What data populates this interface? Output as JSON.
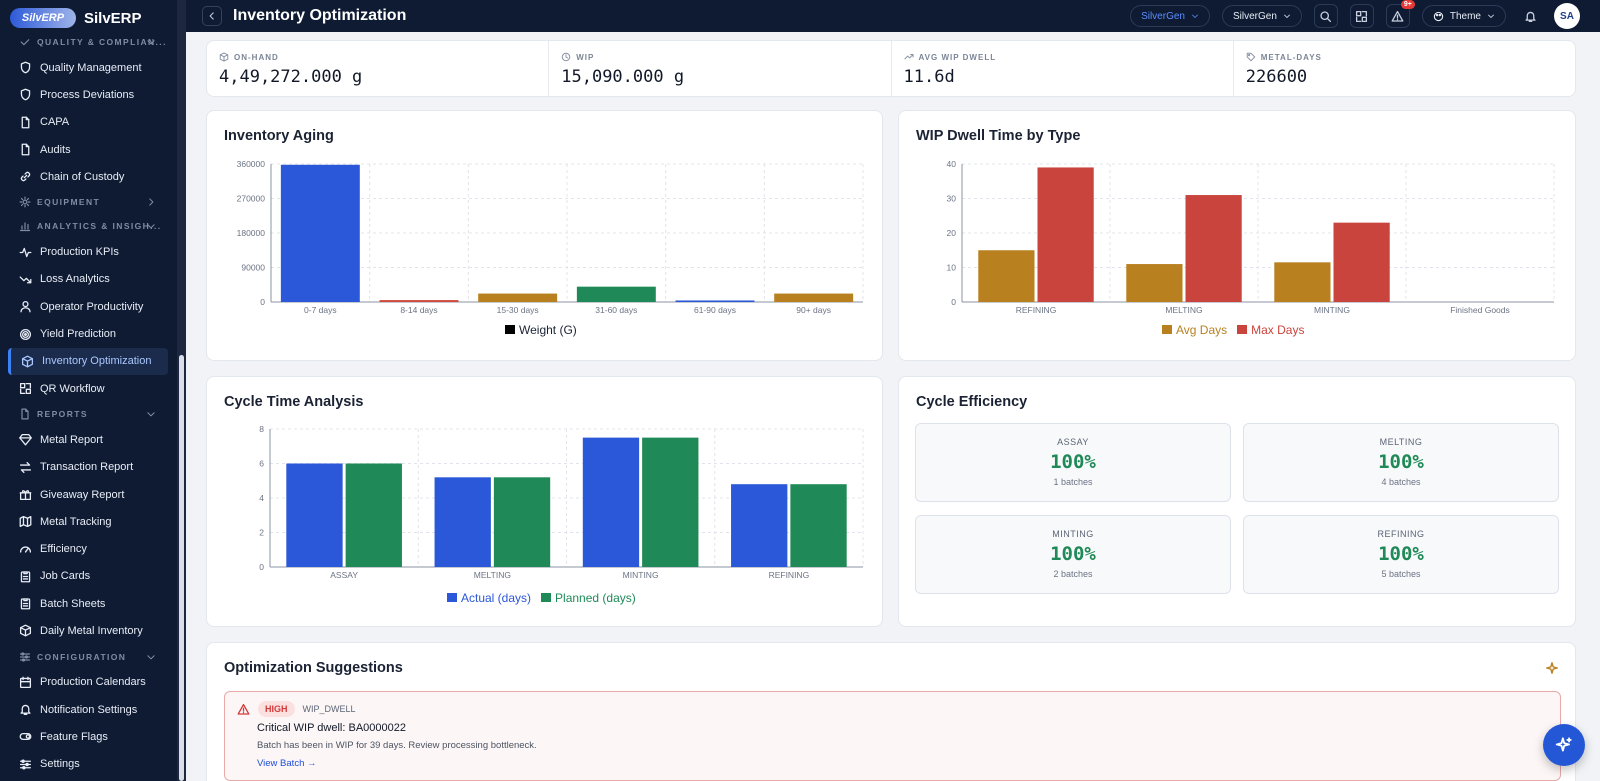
{
  "brand": {
    "logo": "SilvERP",
    "name": "SilvERP"
  },
  "topbar": {
    "title": "Inventory Optimization",
    "org_pill": "SilverGen",
    "org_select": "SilverGen",
    "notif_badge": "9+",
    "theme": "Theme",
    "avatar": "SA"
  },
  "sidebar": {
    "sections": [
      {
        "label": "QUALITY & COMPLIAN...",
        "items": [
          {
            "label": "Quality Management",
            "icon": "shield-icon"
          },
          {
            "label": "Process Deviations",
            "icon": "shield-icon"
          },
          {
            "label": "CAPA",
            "icon": "document-icon"
          },
          {
            "label": "Audits",
            "icon": "document-icon"
          },
          {
            "label": "Chain of Custody",
            "icon": "link-icon"
          }
        ]
      },
      {
        "label": "EQUIPMENT",
        "items": []
      },
      {
        "label": "ANALYTICS & INSIGH...",
        "items": [
          {
            "label": "Production KPIs",
            "icon": "activity-icon"
          },
          {
            "label": "Loss Analytics",
            "icon": "trend-down-icon"
          },
          {
            "label": "Operator Productivity",
            "icon": "user-icon"
          },
          {
            "label": "Yield Prediction",
            "icon": "target-icon"
          },
          {
            "label": "Inventory Optimization",
            "icon": "box-icon"
          },
          {
            "label": "QR Workflow",
            "icon": "qr-icon"
          }
        ]
      },
      {
        "label": "REPORTS",
        "items": [
          {
            "label": "Metal Report",
            "icon": "gem-icon"
          },
          {
            "label": "Transaction Report",
            "icon": "swap-icon"
          },
          {
            "label": "Giveaway Report",
            "icon": "gift-icon"
          },
          {
            "label": "Metal Tracking",
            "icon": "map-icon"
          },
          {
            "label": "Efficiency",
            "icon": "gauge-icon"
          },
          {
            "label": "Job Cards",
            "icon": "clipboard-icon"
          },
          {
            "label": "Batch Sheets",
            "icon": "clipboard-icon"
          },
          {
            "label": "Daily Metal Inventory",
            "icon": "box-icon"
          }
        ]
      },
      {
        "label": "CONFIGURATION",
        "items": [
          {
            "label": "Production Calendars",
            "icon": "calendar-icon"
          },
          {
            "label": "Notification Settings",
            "icon": "bell-icon"
          },
          {
            "label": "Feature Flags",
            "icon": "toggle-icon"
          },
          {
            "label": "Settings",
            "icon": "sliders-icon"
          }
        ]
      }
    ]
  },
  "kpis": [
    {
      "label": "ON-HAND",
      "value": "4,49,272.000 g",
      "icon": "box-icon"
    },
    {
      "label": "WIP",
      "value": "15,090.000 g",
      "icon": "clock-icon"
    },
    {
      "label": "AVG WIP DWELL",
      "value": "11.6d",
      "icon": "trend-up-icon"
    },
    {
      "label": "METAL-DAYS",
      "value": "226600",
      "icon": "tag-icon"
    }
  ],
  "aging": {
    "title": "Inventory Aging",
    "chart_data": {
      "type": "bar",
      "categories": [
        "0-7 days",
        "8-14 days",
        "15-30 days",
        "31-60 days",
        "61-90 days",
        "90+ days"
      ],
      "series": [
        {
          "name": "Weight (G)",
          "values": [
            358000,
            5000,
            22000,
            40000,
            4000,
            22000
          ]
        }
      ],
      "bar_colors": [
        "#2b57d9",
        "#d14a3c",
        "#b8801f",
        "#1f8a57",
        "#2b57d9",
        "#b8801f"
      ],
      "ylim": [
        0,
        360000
      ],
      "yticks": [
        0,
        90000,
        180000,
        270000,
        360000
      ]
    }
  },
  "dwell": {
    "title": "WIP Dwell Time by Type",
    "chart_data": {
      "type": "bar",
      "categories": [
        "REFINING",
        "MELTING",
        "MINTING",
        "Finished Goods"
      ],
      "series": [
        {
          "name": "Avg Days",
          "values": [
            15,
            11,
            11.5,
            0
          ],
          "color": "#b8801f"
        },
        {
          "name": "Max Days",
          "values": [
            39,
            31,
            23,
            0
          ],
          "color": "#c9443c"
        }
      ],
      "ylim": [
        0,
        40
      ],
      "yticks": [
        0,
        10,
        20,
        30,
        40
      ]
    }
  },
  "cycle": {
    "title": "Cycle Time Analysis",
    "chart_data": {
      "type": "bar",
      "categories": [
        "ASSAY",
        "MELTING",
        "MINTING",
        "REFINING"
      ],
      "series": [
        {
          "name": "Actual (days)",
          "values": [
            6,
            5.2,
            7.5,
            4.8
          ],
          "color": "#2b57d9"
        },
        {
          "name": "Planned (days)",
          "values": [
            6,
            5.2,
            7.5,
            4.8
          ],
          "color": "#1f8a57"
        }
      ],
      "ylim": [
        0,
        8
      ],
      "yticks": [
        0,
        2,
        4,
        6,
        8
      ]
    }
  },
  "efficiency": {
    "title": "Cycle Efficiency",
    "tiles": [
      {
        "label": "ASSAY",
        "pct": "100%",
        "batches": "1 batches"
      },
      {
        "label": "MELTING",
        "pct": "100%",
        "batches": "4 batches"
      },
      {
        "label": "MINTING",
        "pct": "100%",
        "batches": "2 batches"
      },
      {
        "label": "REFINING",
        "pct": "100%",
        "batches": "5 batches"
      }
    ]
  },
  "suggestions": {
    "title": "Optimization Suggestions",
    "items": [
      {
        "severity": "HIGH",
        "type": "WIP_DWELL",
        "title": "Critical WIP dwell: BA0000022",
        "desc": "Batch has been in WIP for 39 days. Review processing bottleneck.",
        "link": "View Batch →"
      }
    ]
  }
}
